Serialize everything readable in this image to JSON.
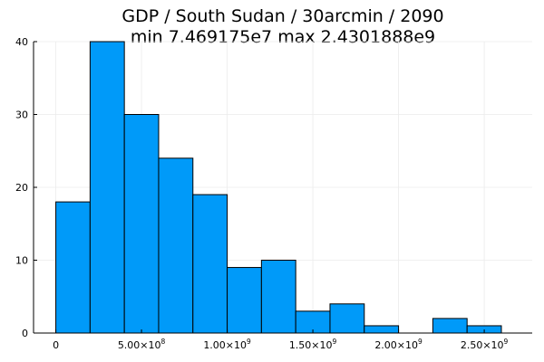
{
  "chart_data": {
    "type": "bar",
    "title": "GDP / South Sudan / 30arcmin / 2090",
    "subtitle": "min 7.469175e7  max 2.4301888e9",
    "xlabel": "",
    "ylabel": "",
    "bin_edges": [
      0,
      200000000,
      400000000,
      600000000,
      800000000,
      1000000000,
      1200000000,
      1400000000,
      1600000000,
      1800000000,
      2000000000,
      2200000000,
      2400000000,
      2600000000
    ],
    "values": [
      18,
      40,
      30,
      24,
      19,
      9,
      10,
      3,
      4,
      1,
      0,
      2,
      1
    ],
    "xlim": [
      -130000000,
      2780000000
    ],
    "ylim": [
      0,
      40
    ],
    "x_ticks": [
      {
        "value": 0,
        "base": "0",
        "exp": ""
      },
      {
        "value": 500000000,
        "base": "5.00×10",
        "exp": "8"
      },
      {
        "value": 1000000000,
        "base": "1.00×10",
        "exp": "9"
      },
      {
        "value": 1500000000,
        "base": "1.50×10",
        "exp": "9"
      },
      {
        "value": 2000000000,
        "base": "2.00×10",
        "exp": "9"
      },
      {
        "value": 2500000000,
        "base": "2.50×10",
        "exp": "9"
      }
    ],
    "y_ticks": [
      {
        "value": 0,
        "label": "0"
      },
      {
        "value": 10,
        "label": "10"
      },
      {
        "value": 20,
        "label": "20"
      },
      {
        "value": 30,
        "label": "30"
      },
      {
        "value": 40,
        "label": "40"
      }
    ],
    "grid": true,
    "legend": "none",
    "bar_color": "#009af9",
    "bar_edge_color": "#000000",
    "grid_color": "#ebebeb",
    "axis_color": "#000000"
  }
}
